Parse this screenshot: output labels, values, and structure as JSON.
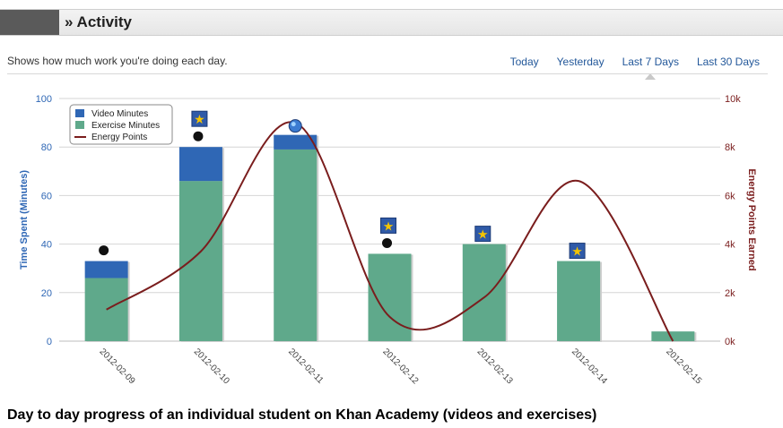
{
  "header": {
    "title": "» Activity"
  },
  "subtitle": "Shows how much work you're doing each day.",
  "tabs": [
    {
      "label": "Today",
      "active": false
    },
    {
      "label": "Yesterday",
      "active": false
    },
    {
      "label": "Last 7 Days",
      "active": true
    },
    {
      "label": "Last 30 Days",
      "active": false
    }
  ],
  "caption": "Day to day progress of an individual student on Khan Academy (videos and exercises)",
  "colors": {
    "video": "#2f67b5",
    "exercise": "#5fa98b",
    "energy": "#7a1d1d",
    "axis_left": "#2f67b5",
    "axis_right": "#7a1d1d",
    "tab_link": "#23589a"
  },
  "chart_data": {
    "type": "bar",
    "stacked": true,
    "categories": [
      "2012-02-09",
      "2012-02-10",
      "2012-02-11",
      "2012-02-12",
      "2012-02-13",
      "2012-02-14",
      "2012-02-15"
    ],
    "series": [
      {
        "name": "Video Minutes",
        "axis": "left",
        "values": [
          7,
          14,
          6,
          0,
          0,
          0,
          0
        ]
      },
      {
        "name": "Exercise Minutes",
        "axis": "left",
        "values": [
          26,
          66,
          79,
          36,
          40,
          33,
          4
        ]
      },
      {
        "name": "Energy Points",
        "axis": "right",
        "type": "line",
        "values": [
          1300,
          3700,
          9000,
          1000,
          1800,
          6600,
          0
        ]
      }
    ],
    "ylabel": "Time Spent (Minutes)",
    "y2label": "Energy Points Earned",
    "ylim": [
      0,
      100
    ],
    "y2lim": [
      0,
      10000
    ],
    "yticks": [
      "0",
      "20",
      "40",
      "60",
      "80",
      "100"
    ],
    "y2ticks": [
      "0k",
      "2k",
      "4k",
      "6k",
      "8k",
      "10k"
    ],
    "grid": true,
    "legend_placement": "top-left",
    "badges": [
      {
        "day": "2012-02-09",
        "icons": [
          "black-blob"
        ]
      },
      {
        "day": "2012-02-10",
        "icons": [
          "star",
          "black-blob"
        ]
      },
      {
        "day": "2012-02-11",
        "icons": [
          "globe"
        ]
      },
      {
        "day": "2012-02-12",
        "icons": [
          "star",
          "black-blob"
        ]
      },
      {
        "day": "2012-02-13",
        "icons": [
          "star"
        ]
      },
      {
        "day": "2012-02-14",
        "icons": [
          "star"
        ]
      }
    ]
  }
}
